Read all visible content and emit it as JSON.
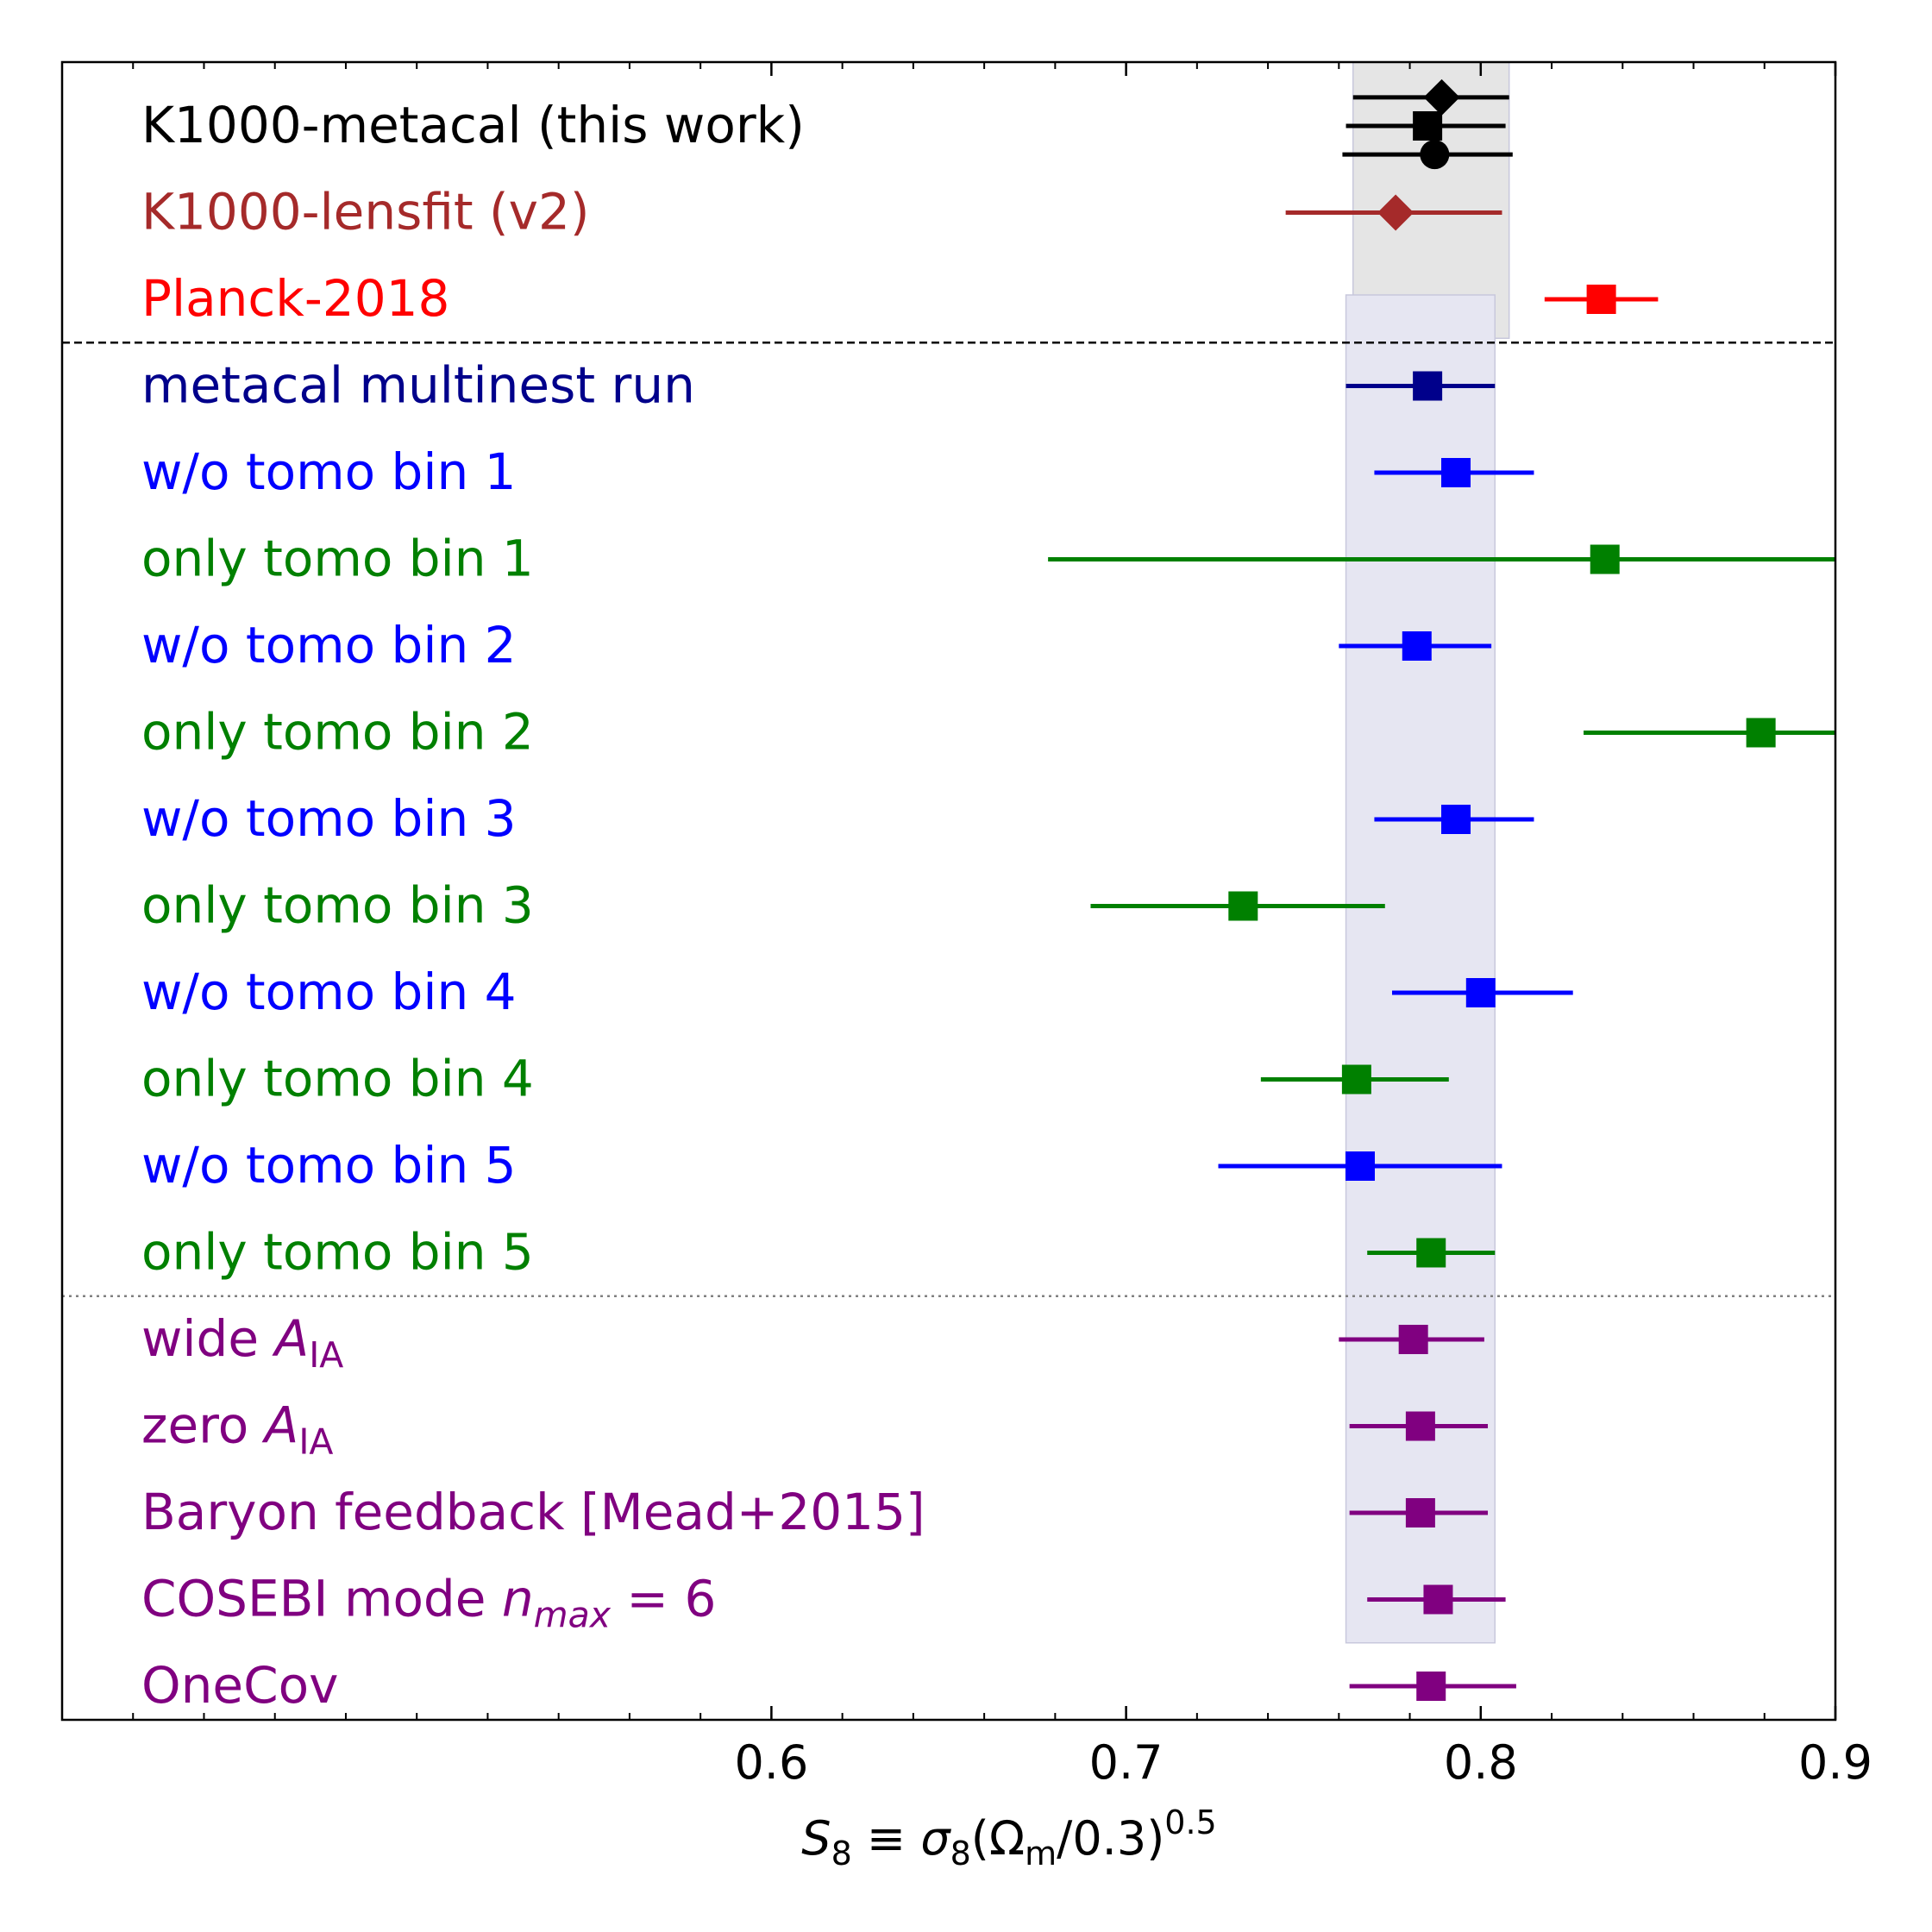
{
  "chart_data": {
    "type": "scatter",
    "subtype": "whisker-plot",
    "xlabel_parts": {
      "s": "S",
      "s_sub": "8",
      "equiv": " ≡ ",
      "sigma": "σ",
      "sigma_sub": "8",
      "open": "(Ω",
      "omega_sub": "m",
      "close": "/0.3)",
      "sup": "0.5"
    },
    "xlim": [
      0.4,
      0.9
    ],
    "xticks": [
      {
        "value": 0.6,
        "label": "0.6"
      },
      {
        "value": 0.7,
        "label": "0.7"
      },
      {
        "value": 0.8,
        "label": "0.8"
      },
      {
        "value": 0.9,
        "label": "0.9"
      }
    ],
    "minor_tick_step": 0.02,
    "bands": [
      {
        "name": "K1000-metacal band",
        "x_low": 0.764,
        "x_high": 0.808,
        "rows": [
          0,
          2.45
        ],
        "color": "#e5e5e5"
      },
      {
        "name": "metacal multinest band",
        "x_low": 0.762,
        "x_high": 0.804,
        "rows": [
          2.45,
          17.5
        ],
        "color": "#e6e6f2"
      }
    ],
    "separators": [
      {
        "after_row": 2,
        "style": "dashed",
        "color": "#000000"
      },
      {
        "after_row": 13,
        "style": "dotted",
        "color": "#808080"
      }
    ],
    "rows": [
      {
        "label": "K1000-metacal (this work)",
        "color": "#000000",
        "markers": [
          {
            "shape": "diamond",
            "x": 0.789,
            "low": 0.764,
            "high": 0.808,
            "offset": -0.33
          },
          {
            "shape": "square",
            "x": 0.785,
            "low": 0.762,
            "high": 0.807,
            "offset": 0
          },
          {
            "shape": "circle",
            "x": 0.787,
            "low": 0.761,
            "high": 0.809,
            "offset": 0.33
          }
        ]
      },
      {
        "label": "K1000-lensfit (v2)",
        "color": "#a52a2a",
        "markers": [
          {
            "shape": "diamond",
            "x": 0.776,
            "low": 0.745,
            "high": 0.806,
            "offset": 0
          }
        ]
      },
      {
        "label": "Planck-2018",
        "color": "#ff0000",
        "markers": [
          {
            "shape": "square",
            "x": 0.834,
            "low": 0.818,
            "high": 0.85,
            "offset": 0
          }
        ]
      },
      {
        "label": "metacal multinest run",
        "color": "#00008b",
        "markers": [
          {
            "shape": "square",
            "x": 0.785,
            "low": 0.762,
            "high": 0.804,
            "offset": 0
          }
        ]
      },
      {
        "label": "w/o tomo bin 1",
        "color": "#0000ff",
        "markers": [
          {
            "shape": "square",
            "x": 0.793,
            "low": 0.77,
            "high": 0.815,
            "offset": 0
          }
        ]
      },
      {
        "label": "only tomo bin 1",
        "color": "#008000",
        "markers": [
          {
            "shape": "square",
            "x": 0.835,
            "low": 0.678,
            "high": 0.9,
            "offset": 0
          }
        ]
      },
      {
        "label": "w/o tomo bin 2",
        "color": "#0000ff",
        "markers": [
          {
            "shape": "square",
            "x": 0.782,
            "low": 0.76,
            "high": 0.803,
            "offset": 0
          }
        ]
      },
      {
        "label": "only tomo bin 2",
        "color": "#008000",
        "markers": [
          {
            "shape": "square",
            "x": 0.879,
            "low": 0.829,
            "high": 0.9,
            "offset": 0
          }
        ]
      },
      {
        "label": "w/o tomo bin 3",
        "color": "#0000ff",
        "markers": [
          {
            "shape": "square",
            "x": 0.793,
            "low": 0.77,
            "high": 0.815,
            "offset": 0
          }
        ]
      },
      {
        "label": "only tomo bin 3",
        "color": "#008000",
        "markers": [
          {
            "shape": "square",
            "x": 0.733,
            "low": 0.69,
            "high": 0.773,
            "offset": 0
          }
        ]
      },
      {
        "label": "w/o tomo bin 4",
        "color": "#0000ff",
        "markers": [
          {
            "shape": "square",
            "x": 0.8,
            "low": 0.775,
            "high": 0.826,
            "offset": 0
          }
        ]
      },
      {
        "label": "only tomo bin 4",
        "color": "#008000",
        "markers": [
          {
            "shape": "square",
            "x": 0.765,
            "low": 0.738,
            "high": 0.791,
            "offset": 0
          }
        ]
      },
      {
        "label": "w/o tomo bin 5",
        "color": "#0000ff",
        "markers": [
          {
            "shape": "square",
            "x": 0.766,
            "low": 0.726,
            "high": 0.806,
            "offset": 0
          }
        ]
      },
      {
        "label": "only tomo bin 5",
        "color": "#008000",
        "markers": [
          {
            "shape": "square",
            "x": 0.786,
            "low": 0.768,
            "high": 0.804,
            "offset": 0
          }
        ]
      },
      {
        "label": "wide ",
        "label_math": {
          "base": "A",
          "sub": "IA"
        },
        "color": "#800080",
        "markers": [
          {
            "shape": "square",
            "x": 0.781,
            "low": 0.76,
            "high": 0.801,
            "offset": 0
          }
        ]
      },
      {
        "label": "zero ",
        "label_math": {
          "base": "A",
          "sub": "IA"
        },
        "color": "#800080",
        "markers": [
          {
            "shape": "square",
            "x": 0.783,
            "low": 0.763,
            "high": 0.802,
            "offset": 0
          }
        ]
      },
      {
        "label": "Baryon feedback [Mead+2015]",
        "color": "#800080",
        "markers": [
          {
            "shape": "square",
            "x": 0.783,
            "low": 0.763,
            "high": 0.802,
            "offset": 0
          }
        ]
      },
      {
        "label": "COSEBI mode ",
        "label_math": {
          "base": "n",
          "sub": "max",
          "tail": " = 6"
        },
        "color": "#800080",
        "markers": [
          {
            "shape": "square",
            "x": 0.788,
            "low": 0.768,
            "high": 0.807,
            "offset": 0
          }
        ]
      },
      {
        "label": "OneCov",
        "color": "#800080",
        "markers": [
          {
            "shape": "square",
            "x": 0.786,
            "low": 0.763,
            "high": 0.81,
            "offset": 0
          }
        ]
      }
    ]
  }
}
